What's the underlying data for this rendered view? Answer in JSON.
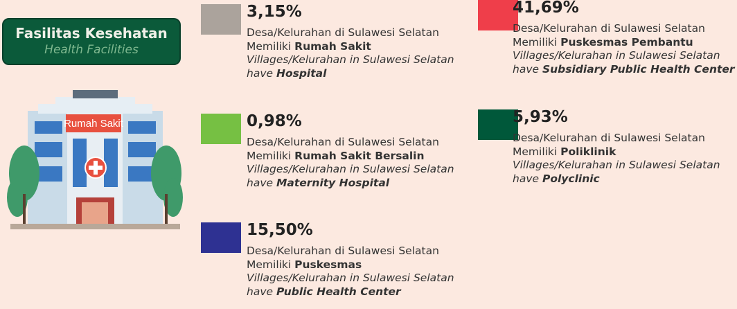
{
  "header": {
    "title": "Fasilitas Kesehatan",
    "subtitle": "Health Facilities"
  },
  "illustration": {
    "sign": "Rumah Sakit"
  },
  "items": [
    {
      "percent": "3,15%",
      "color": "#aba39c",
      "line1": "Desa/Kelurahan di Sulawesi Selatan",
      "line2_prefix": "Memiliki",
      "line2_bold": "Rumah Sakit",
      "line3": "Villages/Kelurahan in Sulawesi Selatan",
      "line4_prefix": "have",
      "line4_bold": "Hospital"
    },
    {
      "percent": "0,98%",
      "color": "#76c043",
      "line1": "Desa/Kelurahan di Sulawesi Selatan",
      "line2_prefix": "Memiliki",
      "line2_bold": "Rumah Sakit Bersalin",
      "line3": "Villages/Kelurahan in Sulawesi Selatan",
      "line4_prefix": "have",
      "line4_bold": "Maternity Hospital"
    },
    {
      "percent": "15,50%",
      "color": "#2e3192",
      "line1": "Desa/Kelurahan di Sulawesi Selatan",
      "line2_prefix": "Memiliki",
      "line2_bold": "Puskesmas",
      "line3": "Villages/Kelurahan in Sulawesi Selatan",
      "line4_prefix": "have",
      "line4_bold": "Public Health Center"
    },
    {
      "percent": "41,69%",
      "color": "#ef3e4a",
      "line1": "Desa/Kelurahan di Sulawesi Selatan",
      "line2_prefix": "Memiliki",
      "line2_bold": "Puskesmas Pembantu",
      "line3": "Villages/Kelurahan in Sulawesi Selatan",
      "line4_prefix": "have",
      "line4_bold": "Subsidiary Public Health Center"
    },
    {
      "percent": "5,93%",
      "color": "#00583a",
      "line1": "Desa/Kelurahan di Sulawesi Selatan",
      "line2_prefix": "Memiliki",
      "line2_bold": "Poliklinik",
      "line3": "Villages/Kelurahan in Sulawesi Selatan",
      "line4_prefix": "have",
      "line4_bold": "Polyclinic"
    }
  ]
}
